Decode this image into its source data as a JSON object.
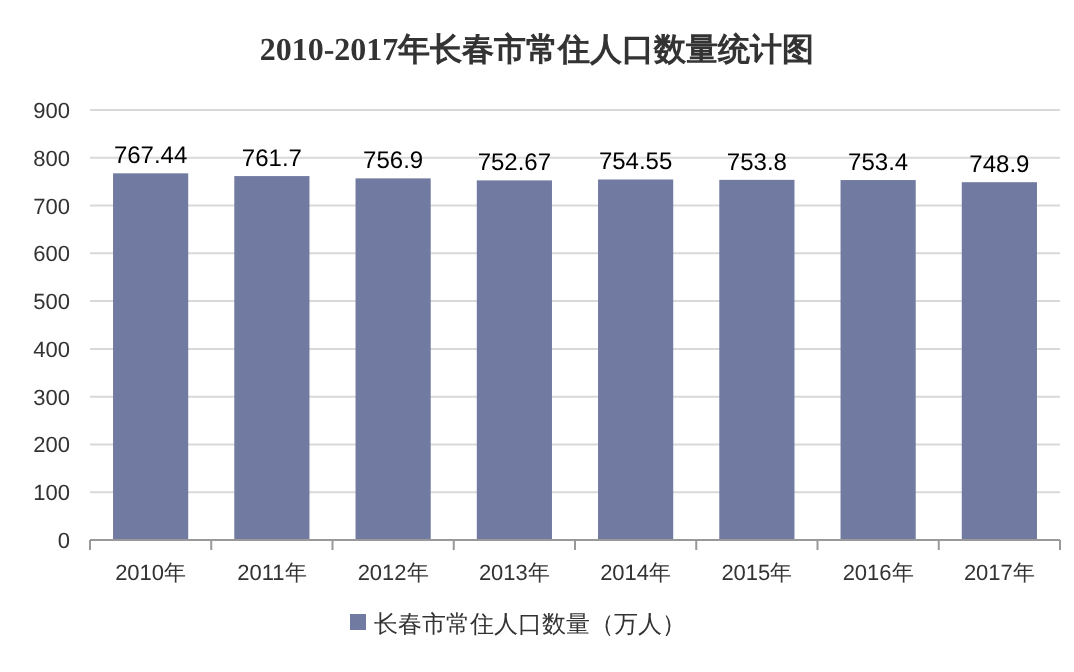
{
  "chart_data": {
    "type": "bar",
    "title": "2010-2017年长春市常住人口数量统计图",
    "categories": [
      "2010年",
      "2011年",
      "2012年",
      "2013年",
      "2014年",
      "2015年",
      "2016年",
      "2017年"
    ],
    "series": [
      {
        "name": "长春市常住人口数量（万人）",
        "color": "#717aa1",
        "values": [
          767.44,
          761.7,
          756.9,
          752.67,
          754.55,
          753.8,
          753.4,
          748.9
        ]
      }
    ],
    "ylim": [
      0,
      900
    ],
    "yticks": [
      0,
      100,
      200,
      300,
      400,
      500,
      600,
      700,
      800,
      900
    ],
    "grid": "y",
    "legend": "bottom",
    "data_labels": true
  }
}
